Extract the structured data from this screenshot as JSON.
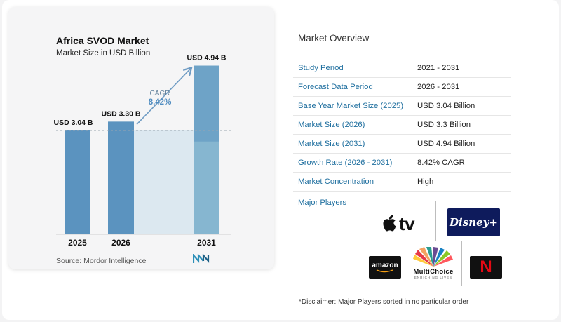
{
  "chart_data": {
    "type": "bar",
    "title": "Africa SVOD Market",
    "subtitle": "Market Size in USD Billion",
    "categories": [
      "2025",
      "2026",
      "2031"
    ],
    "values": [
      3.04,
      3.3,
      4.94
    ],
    "data_labels": [
      "USD 3.04 B",
      "USD 3.30 B",
      "USD 4.94 B"
    ],
    "cagr_label": "CAGR",
    "cagr_value": "8.42%",
    "ylim": [
      0,
      5.3
    ],
    "bar_color": "#5b93bf",
    "bar_color_light": "#86b6d0",
    "shade_color": "#dce8f0",
    "reference_line_value": 3.04
  },
  "source": {
    "label": "Source:",
    "text": "Mordor Intelligence"
  },
  "overview": {
    "title": "Market Overview",
    "rows": [
      {
        "label": "Study Period",
        "value": "2021 - 2031"
      },
      {
        "label": "Forecast Data Period",
        "value": "2026 - 2031"
      },
      {
        "label": "Base Year Market Size (2025)",
        "value": "USD 3.04 Billion"
      },
      {
        "label": "Market Size (2026)",
        "value": "USD 3.3 Billion"
      },
      {
        "label": "Market Size (2031)",
        "value": "USD 4.94 Billion"
      },
      {
        "label": "Growth Rate (2026 - 2031)",
        "value": "8.42% CAGR"
      },
      {
        "label": "Market Concentration",
        "value": "High"
      }
    ],
    "players_label": "Major Players"
  },
  "players": {
    "apple_tv": "tv",
    "disney": "Disney+",
    "amazon": "amazon",
    "multichoice": "MultiChoice",
    "multichoice_tagline": "ENRICHING LIVES",
    "netflix": "N"
  },
  "disclaimer": "*Disclaimer: Major Players sorted in no particular order"
}
